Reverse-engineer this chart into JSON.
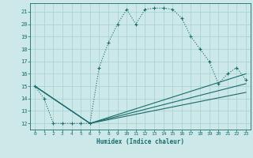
{
  "xlabel": "Humidex (Indice chaleur)",
  "bg_color": "#cce8e8",
  "grid_color": "#aad4d4",
  "line_color": "#1a6b6b",
  "xlim": [
    -0.5,
    23.5
  ],
  "ylim": [
    11.5,
    21.7
  ],
  "yticks": [
    12,
    13,
    14,
    15,
    16,
    17,
    18,
    19,
    20,
    21
  ],
  "xticks": [
    0,
    1,
    2,
    3,
    4,
    5,
    6,
    7,
    8,
    9,
    10,
    11,
    12,
    13,
    14,
    15,
    16,
    17,
    18,
    19,
    20,
    21,
    22,
    23
  ],
  "series": [
    [
      0,
      15
    ],
    [
      1,
      14
    ],
    [
      2,
      12
    ],
    [
      3,
      12
    ],
    [
      4,
      12
    ],
    [
      5,
      12
    ],
    [
      6,
      12
    ],
    [
      7,
      16.5
    ],
    [
      8,
      18.5
    ],
    [
      9,
      20
    ],
    [
      10,
      21.2
    ],
    [
      11,
      20
    ],
    [
      12,
      21.2
    ],
    [
      13,
      21.3
    ],
    [
      14,
      21.3
    ],
    [
      15,
      21.2
    ],
    [
      16,
      20.5
    ],
    [
      17,
      19
    ],
    [
      18,
      18
    ],
    [
      19,
      17
    ],
    [
      20,
      15.2
    ],
    [
      21,
      16
    ],
    [
      22,
      16.5
    ],
    [
      23,
      15.5
    ]
  ],
  "lower_lines": [
    {
      "x": [
        0,
        6,
        23
      ],
      "y": [
        15,
        12,
        16.0
      ]
    },
    {
      "x": [
        0,
        6,
        23
      ],
      "y": [
        15,
        12,
        15.2
      ]
    },
    {
      "x": [
        0,
        6,
        23
      ],
      "y": [
        15,
        12,
        14.5
      ]
    }
  ]
}
